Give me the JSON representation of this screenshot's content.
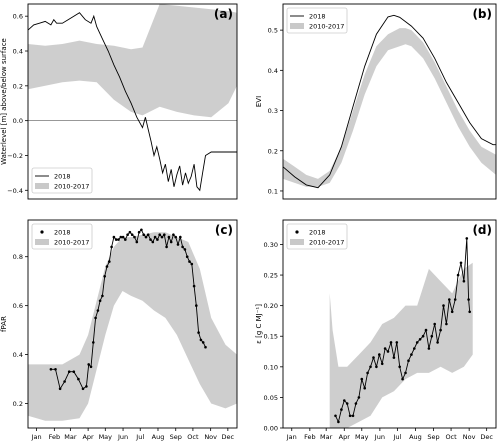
{
  "chart_data": [
    {
      "panel_label": "(a)",
      "type": "line",
      "ylabel": "Waterlevel [m] above/below surface",
      "xlabel": "",
      "ylim": [
        -0.45,
        0.67
      ],
      "yticks": [
        -0.4,
        -0.2,
        0.0,
        0.2,
        0.4,
        0.6
      ],
      "ytick_labels": [
        "−0.4",
        "−0.2",
        "0.0",
        "0.2",
        "0.4",
        "0.6"
      ],
      "xlim": [
        0,
        365
      ],
      "grid": false,
      "zero_line": true,
      "legend": {
        "placement": "bottom-left",
        "entries": [
          "2018",
          "2010-2017"
        ]
      },
      "series": [
        {
          "name": "2018",
          "style": "line",
          "x": [
            0,
            10,
            20,
            30,
            40,
            45,
            50,
            60,
            70,
            80,
            90,
            100,
            110,
            115,
            120,
            130,
            140,
            150,
            160,
            170,
            180,
            190,
            200,
            205,
            210,
            215,
            220,
            225,
            230,
            235,
            240,
            245,
            250,
            255,
            260,
            265,
            270,
            275,
            280,
            285,
            290,
            295,
            300,
            305,
            310,
            320,
            330,
            340,
            350,
            365
          ],
          "y": [
            0.52,
            0.55,
            0.56,
            0.57,
            0.55,
            0.58,
            0.56,
            0.56,
            0.58,
            0.6,
            0.62,
            0.58,
            0.56,
            0.6,
            0.54,
            0.47,
            0.4,
            0.32,
            0.25,
            0.17,
            0.1,
            0.02,
            -0.04,
            0.02,
            -0.05,
            -0.12,
            -0.2,
            -0.15,
            -0.22,
            -0.3,
            -0.25,
            -0.35,
            -0.28,
            -0.38,
            -0.31,
            -0.26,
            -0.37,
            -0.3,
            -0.36,
            -0.32,
            -0.25,
            -0.38,
            -0.4,
            -0.3,
            -0.2,
            -0.18,
            -0.18,
            -0.18,
            -0.18,
            -0.18
          ]
        },
        {
          "name": "2010-2017",
          "style": "band",
          "x": [
            0,
            30,
            60,
            90,
            120,
            150,
            180,
            200,
            230,
            260,
            290,
            320,
            350,
            365
          ],
          "upper": [
            0.44,
            0.43,
            0.44,
            0.46,
            0.44,
            0.43,
            0.41,
            0.42,
            0.67,
            0.66,
            0.65,
            0.64,
            0.63,
            0.62
          ],
          "lower": [
            0.18,
            0.2,
            0.22,
            0.23,
            0.22,
            0.12,
            0.05,
            0.03,
            0.08,
            0.05,
            0.03,
            0.02,
            0.1,
            0.2
          ]
        }
      ]
    },
    {
      "panel_label": "(b)",
      "type": "line",
      "ylabel": "EVI",
      "xlabel": "",
      "ylim": [
        0.08,
        0.565
      ],
      "yticks": [
        0.1,
        0.2,
        0.3,
        0.4,
        0.5
      ],
      "ytick_labels": [
        "0.1",
        "0.2",
        "0.3",
        "0.4",
        "0.5"
      ],
      "xlim": [
        0,
        365
      ],
      "grid": false,
      "legend": {
        "placement": "top-left",
        "entries": [
          "2018",
          "2010-2017"
        ]
      },
      "series": [
        {
          "name": "2018",
          "style": "line",
          "x": [
            0,
            20,
            40,
            60,
            80,
            100,
            120,
            140,
            160,
            180,
            190,
            200,
            220,
            240,
            260,
            280,
            300,
            320,
            340,
            360,
            365
          ],
          "y": [
            0.16,
            0.135,
            0.115,
            0.108,
            0.14,
            0.21,
            0.31,
            0.41,
            0.49,
            0.533,
            0.537,
            0.532,
            0.51,
            0.48,
            0.43,
            0.37,
            0.32,
            0.27,
            0.23,
            0.215,
            0.215
          ]
        },
        {
          "name": "2010-2017",
          "style": "band",
          "x": [
            0,
            20,
            40,
            60,
            80,
            100,
            120,
            140,
            160,
            180,
            200,
            210,
            220,
            240,
            260,
            280,
            300,
            320,
            340,
            365
          ],
          "upper": [
            0.18,
            0.16,
            0.14,
            0.13,
            0.15,
            0.21,
            0.3,
            0.39,
            0.46,
            0.49,
            0.505,
            0.505,
            0.5,
            0.47,
            0.42,
            0.36,
            0.3,
            0.25,
            0.21,
            0.19
          ],
          "lower": [
            0.13,
            0.12,
            0.11,
            0.11,
            0.12,
            0.17,
            0.25,
            0.34,
            0.41,
            0.45,
            0.46,
            0.465,
            0.46,
            0.43,
            0.38,
            0.32,
            0.26,
            0.21,
            0.17,
            0.14
          ]
        }
      ]
    },
    {
      "panel_label": "(c)",
      "type": "line",
      "ylabel": "fPAR",
      "xlabel": "",
      "ylim": [
        0.1,
        0.95
      ],
      "yticks": [
        0.2,
        0.4,
        0.6,
        0.8
      ],
      "ytick_labels": [
        "0.2",
        "0.4",
        "0.6",
        "0.8"
      ],
      "xlim": [
        0,
        365
      ],
      "xticks": [
        15,
        46,
        74,
        105,
        135,
        166,
        196,
        227,
        258,
        288,
        319,
        349
      ],
      "xtick_labels": [
        "Jan",
        "Feb",
        "Mar",
        "Apr",
        "May",
        "Jun",
        "Jul",
        "Aug",
        "Sep",
        "Oct",
        "Nov",
        "Dec"
      ],
      "grid": false,
      "legend": {
        "placement": "top-left",
        "entries": [
          "2018",
          "2010-2017"
        ]
      },
      "series": [
        {
          "name": "2018",
          "style": "points-line",
          "x": [
            40,
            48,
            56,
            64,
            72,
            80,
            88,
            96,
            102,
            106,
            110,
            114,
            118,
            122,
            126,
            130,
            134,
            138,
            142,
            146,
            150,
            154,
            158,
            162,
            166,
            170,
            174,
            178,
            182,
            186,
            190,
            194,
            198,
            202,
            206,
            210,
            214,
            218,
            222,
            226,
            230,
            234,
            238,
            242,
            246,
            250,
            254,
            258,
            262,
            266,
            270,
            274,
            278,
            282,
            286,
            290,
            294,
            298,
            302,
            306,
            310
          ],
          "y": [
            0.34,
            0.34,
            0.26,
            0.29,
            0.33,
            0.33,
            0.3,
            0.26,
            0.27,
            0.36,
            0.35,
            0.45,
            0.55,
            0.58,
            0.62,
            0.64,
            0.72,
            0.76,
            0.78,
            0.84,
            0.88,
            0.87,
            0.87,
            0.88,
            0.88,
            0.87,
            0.89,
            0.9,
            0.89,
            0.88,
            0.86,
            0.9,
            0.91,
            0.89,
            0.88,
            0.89,
            0.87,
            0.86,
            0.88,
            0.87,
            0.89,
            0.88,
            0.89,
            0.84,
            0.88,
            0.86,
            0.89,
            0.88,
            0.85,
            0.88,
            0.84,
            0.83,
            0.8,
            0.78,
            0.77,
            0.68,
            0.6,
            0.49,
            0.46,
            0.45,
            0.43
          ]
        },
        {
          "name": "2010-2017",
          "style": "band",
          "x": [
            0,
            30,
            60,
            90,
            105,
            120,
            135,
            150,
            165,
            180,
            200,
            220,
            240,
            260,
            280,
            300,
            320,
            345,
            365
          ],
          "upper": [
            0.36,
            0.36,
            0.36,
            0.4,
            0.48,
            0.62,
            0.76,
            0.84,
            0.88,
            0.88,
            0.89,
            0.9,
            0.9,
            0.88,
            0.86,
            0.75,
            0.55,
            0.44,
            0.4
          ],
          "lower": [
            0.15,
            0.13,
            0.13,
            0.14,
            0.2,
            0.34,
            0.48,
            0.6,
            0.66,
            0.64,
            0.62,
            0.58,
            0.55,
            0.48,
            0.38,
            0.28,
            0.2,
            0.18,
            0.2
          ]
        }
      ]
    },
    {
      "panel_label": "(d)",
      "type": "line",
      "ylabel": "ε [g C MJ⁻¹]",
      "xlabel": "",
      "ylim": [
        0.0,
        0.34
      ],
      "yticks": [
        0.0,
        0.05,
        0.1,
        0.15,
        0.2,
        0.25,
        0.3
      ],
      "ytick_labels": [
        "0.00",
        "0.05",
        "0.10",
        "0.15",
        "0.20",
        "0.25",
        "0.30"
      ],
      "xlim": [
        0,
        365
      ],
      "xticks": [
        15,
        46,
        74,
        105,
        135,
        166,
        196,
        227,
        258,
        288,
        319,
        349
      ],
      "xtick_labels": [
        "Jan",
        "Feb",
        "Mar",
        "Apr",
        "May",
        "Jun",
        "Jul",
        "Aug",
        "Sep",
        "Oct",
        "Nov",
        "Dec"
      ],
      "grid": false,
      "legend": {
        "placement": "top-left",
        "entries": [
          "2018",
          "2010-2017"
        ]
      },
      "series": [
        {
          "name": "2018",
          "style": "points-line",
          "x": [
            90,
            95,
            100,
            105,
            110,
            115,
            120,
            125,
            130,
            135,
            140,
            145,
            150,
            155,
            160,
            165,
            170,
            175,
            180,
            185,
            190,
            195,
            200,
            205,
            210,
            215,
            220,
            225,
            230,
            235,
            240,
            245,
            250,
            255,
            260,
            265,
            270,
            275,
            280,
            285,
            290,
            295,
            300,
            305,
            310,
            315,
            318,
            320
          ],
          "y": [
            0.02,
            0.01,
            0.03,
            0.045,
            0.04,
            0.02,
            0.02,
            0.04,
            0.05,
            0.08,
            0.065,
            0.09,
            0.1,
            0.115,
            0.1,
            0.12,
            0.105,
            0.13,
            0.125,
            0.14,
            0.115,
            0.14,
            0.1,
            0.08,
            0.09,
            0.11,
            0.12,
            0.13,
            0.14,
            0.145,
            0.15,
            0.16,
            0.13,
            0.15,
            0.17,
            0.14,
            0.16,
            0.2,
            0.17,
            0.21,
            0.19,
            0.21,
            0.25,
            0.27,
            0.24,
            0.31,
            0.21,
            0.19
          ]
        },
        {
          "name": "2010-2017",
          "style": "band",
          "x": [
            80,
            85,
            95,
            110,
            130,
            150,
            170,
            190,
            210,
            230,
            250,
            270,
            290,
            310,
            325
          ],
          "upper": [
            0.22,
            0.16,
            0.1,
            0.1,
            0.12,
            0.14,
            0.17,
            0.18,
            0.2,
            0.2,
            0.26,
            0.24,
            0.22,
            0.26,
            0.27
          ],
          "lower": [
            0.0,
            0.0,
            0.0,
            0.0,
            0.01,
            0.02,
            0.05,
            0.06,
            0.08,
            0.09,
            0.09,
            0.1,
            0.09,
            0.1,
            0.12
          ]
        }
      ]
    }
  ]
}
